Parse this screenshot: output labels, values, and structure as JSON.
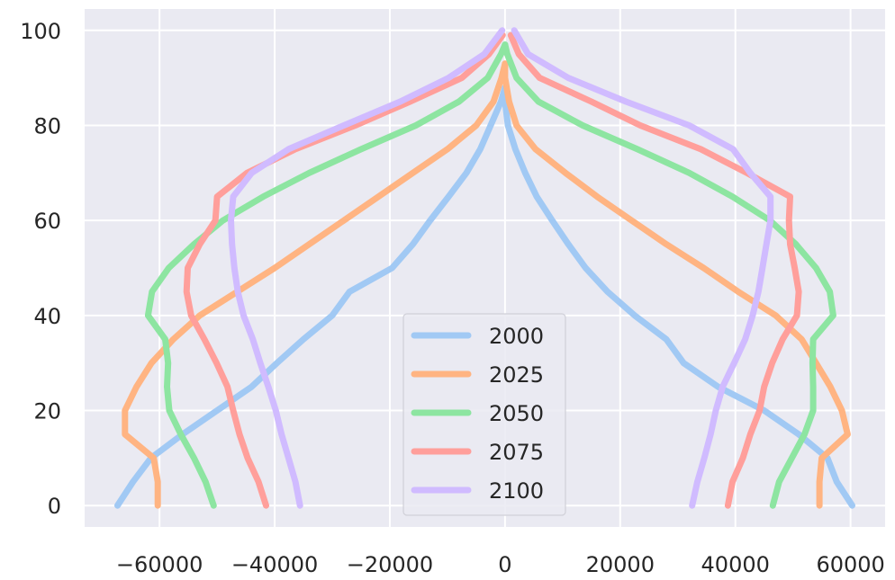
{
  "chart_data": {
    "type": "line",
    "title": "",
    "xlabel": "",
    "ylabel": "",
    "xlim": [
      -73000,
      66000
    ],
    "ylim": [
      -4.5,
      104.5
    ],
    "xticks": [
      -60000,
      -40000,
      -20000,
      0,
      20000,
      40000,
      60000
    ],
    "xtick_labels": [
      "−60000",
      "−40000",
      "−20000",
      "0",
      "20000",
      "40000",
      "60000"
    ],
    "yticks": [
      0,
      20,
      40,
      60,
      80,
      100
    ],
    "ytick_labels": [
      "0",
      "20",
      "40",
      "60",
      "80",
      "100"
    ],
    "grid": true,
    "legend_position": "lower center",
    "background": "#eaeaf2",
    "series": [
      {
        "name": "2000",
        "color": "#a1c9f4",
        "right": [
          [
            60300,
            0
          ],
          [
            57600,
            5
          ],
          [
            56000,
            10
          ],
          [
            51000,
            15
          ],
          [
            45000,
            20
          ],
          [
            37000,
            25
          ],
          [
            31000,
            30
          ],
          [
            28000,
            35
          ],
          [
            22500,
            40
          ],
          [
            17800,
            45
          ],
          [
            14000,
            50
          ],
          [
            11000,
            55
          ],
          [
            8200,
            60
          ],
          [
            5500,
            65
          ],
          [
            3500,
            70
          ],
          [
            1800,
            75
          ],
          [
            500,
            80
          ],
          [
            0,
            85
          ],
          [
            0,
            88
          ]
        ],
        "left": [
          [
            -67300,
            0
          ],
          [
            -64600,
            5
          ],
          [
            -61500,
            10
          ],
          [
            -56000,
            15
          ],
          [
            -50000,
            20
          ],
          [
            -44000,
            25
          ],
          [
            -39600,
            30
          ],
          [
            -35000,
            35
          ],
          [
            -30000,
            40
          ],
          [
            -27000,
            45
          ],
          [
            -19600,
            50
          ],
          [
            -16000,
            55
          ],
          [
            -13000,
            60
          ],
          [
            -9800,
            65
          ],
          [
            -6700,
            70
          ],
          [
            -4300,
            75
          ],
          [
            -2500,
            80
          ],
          [
            -700,
            85
          ],
          [
            0,
            88
          ]
        ]
      },
      {
        "name": "2025",
        "color": "#ffb482",
        "right": [
          [
            54600,
            0
          ],
          [
            54600,
            5
          ],
          [
            55000,
            10
          ],
          [
            59500,
            15
          ],
          [
            58500,
            20
          ],
          [
            56500,
            25
          ],
          [
            54000,
            30
          ],
          [
            51500,
            35
          ],
          [
            47000,
            40
          ],
          [
            40500,
            45
          ],
          [
            34500,
            50
          ],
          [
            28000,
            55
          ],
          [
            22000,
            60
          ],
          [
            16000,
            65
          ],
          [
            10500,
            70
          ],
          [
            5300,
            75
          ],
          [
            2000,
            80
          ],
          [
            700,
            85
          ],
          [
            0,
            90
          ],
          [
            0,
            93
          ]
        ],
        "left": [
          [
            -60300,
            0
          ],
          [
            -60300,
            5
          ],
          [
            -61000,
            10
          ],
          [
            -66000,
            15
          ],
          [
            -66000,
            20
          ],
          [
            -64000,
            25
          ],
          [
            -61400,
            30
          ],
          [
            -57600,
            35
          ],
          [
            -53000,
            40
          ],
          [
            -46500,
            45
          ],
          [
            -40000,
            50
          ],
          [
            -34000,
            55
          ],
          [
            -28000,
            60
          ],
          [
            -22000,
            65
          ],
          [
            -16000,
            70
          ],
          [
            -10000,
            75
          ],
          [
            -5000,
            80
          ],
          [
            -2000,
            85
          ],
          [
            -600,
            90
          ],
          [
            0,
            93
          ]
        ]
      },
      {
        "name": "2050",
        "color": "#8de5a1",
        "right": [
          [
            46500,
            0
          ],
          [
            47600,
            5
          ],
          [
            49800,
            10
          ],
          [
            52000,
            15
          ],
          [
            53500,
            20
          ],
          [
            53500,
            25
          ],
          [
            53400,
            30
          ],
          [
            53500,
            35
          ],
          [
            57000,
            40
          ],
          [
            56400,
            45
          ],
          [
            54000,
            50
          ],
          [
            50500,
            55
          ],
          [
            46000,
            60
          ],
          [
            39500,
            65
          ],
          [
            32000,
            70
          ],
          [
            23000,
            75
          ],
          [
            13500,
            80
          ],
          [
            5800,
            85
          ],
          [
            2000,
            90
          ],
          [
            400,
            95
          ],
          [
            0,
            97
          ]
        ],
        "left": [
          [
            -50600,
            0
          ],
          [
            -52000,
            5
          ],
          [
            -54000,
            10
          ],
          [
            -56300,
            15
          ],
          [
            -58300,
            20
          ],
          [
            -58700,
            25
          ],
          [
            -58500,
            30
          ],
          [
            -59000,
            35
          ],
          [
            -62000,
            40
          ],
          [
            -61300,
            45
          ],
          [
            -58400,
            50
          ],
          [
            -54000,
            55
          ],
          [
            -49000,
            60
          ],
          [
            -42000,
            65
          ],
          [
            -34000,
            70
          ],
          [
            -25000,
            75
          ],
          [
            -15500,
            80
          ],
          [
            -8000,
            85
          ],
          [
            -3000,
            90
          ],
          [
            -700,
            95
          ],
          [
            0,
            97
          ]
        ]
      },
      {
        "name": "2075",
        "color": "#ff9f9b",
        "right": [
          [
            38700,
            0
          ],
          [
            39500,
            5
          ],
          [
            41300,
            10
          ],
          [
            42600,
            15
          ],
          [
            44200,
            20
          ],
          [
            45000,
            25
          ],
          [
            46400,
            30
          ],
          [
            48200,
            35
          ],
          [
            50700,
            40
          ],
          [
            51000,
            45
          ],
          [
            50300,
            50
          ],
          [
            49500,
            55
          ],
          [
            49300,
            60
          ],
          [
            49500,
            65
          ],
          [
            42000,
            70
          ],
          [
            34000,
            75
          ],
          [
            23500,
            80
          ],
          [
            15000,
            85
          ],
          [
            6000,
            90
          ],
          [
            2400,
            95
          ],
          [
            1000,
            99
          ]
        ],
        "left": [
          [
            -41500,
            0
          ],
          [
            -42800,
            5
          ],
          [
            -44700,
            10
          ],
          [
            -46100,
            15
          ],
          [
            -47200,
            20
          ],
          [
            -48200,
            25
          ],
          [
            -50100,
            30
          ],
          [
            -52200,
            35
          ],
          [
            -54500,
            40
          ],
          [
            -55300,
            45
          ],
          [
            -55100,
            50
          ],
          [
            -53000,
            55
          ],
          [
            -50300,
            60
          ],
          [
            -50000,
            65
          ],
          [
            -44800,
            70
          ],
          [
            -36400,
            75
          ],
          [
            -26000,
            80
          ],
          [
            -16500,
            85
          ],
          [
            -7500,
            90
          ],
          [
            -2800,
            95
          ],
          [
            -400,
            99
          ]
        ]
      },
      {
        "name": "2100",
        "color": "#d0bbff",
        "right": [
          [
            32500,
            0
          ],
          [
            33400,
            5
          ],
          [
            34600,
            10
          ],
          [
            35700,
            15
          ],
          [
            36600,
            20
          ],
          [
            37800,
            25
          ],
          [
            39800,
            30
          ],
          [
            41700,
            35
          ],
          [
            43000,
            40
          ],
          [
            44000,
            45
          ],
          [
            44700,
            50
          ],
          [
            45400,
            55
          ],
          [
            46100,
            60
          ],
          [
            46100,
            65
          ],
          [
            42600,
            70
          ],
          [
            39600,
            75
          ],
          [
            32000,
            80
          ],
          [
            21000,
            85
          ],
          [
            11000,
            90
          ],
          [
            4000,
            95
          ],
          [
            1600,
            100
          ]
        ],
        "left": [
          [
            -35600,
            0
          ],
          [
            -36400,
            5
          ],
          [
            -37600,
            10
          ],
          [
            -38800,
            15
          ],
          [
            -39800,
            20
          ],
          [
            -41100,
            25
          ],
          [
            -42500,
            30
          ],
          [
            -43800,
            35
          ],
          [
            -45400,
            40
          ],
          [
            -46400,
            45
          ],
          [
            -47000,
            50
          ],
          [
            -47400,
            55
          ],
          [
            -47600,
            60
          ],
          [
            -47200,
            65
          ],
          [
            -44000,
            70
          ],
          [
            -37600,
            75
          ],
          [
            -28000,
            80
          ],
          [
            -18200,
            85
          ],
          [
            -9800,
            90
          ],
          [
            -3600,
            95
          ],
          [
            -500,
            100
          ]
        ]
      }
    ]
  }
}
